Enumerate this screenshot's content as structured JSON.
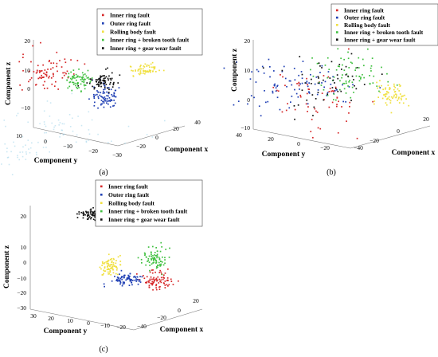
{
  "figure": {
    "panel_labels": [
      "(a)",
      "(b)",
      "(c)"
    ]
  },
  "chart_data": [
    {
      "type": "scatter",
      "panel": "(a)",
      "xlabel": "Component x",
      "ylabel": "Component y",
      "zlabel": "Component z",
      "xticks": [
        "40",
        "20",
        "0",
        "−20"
      ],
      "yticks": [
        "10",
        "0",
        "−10",
        "−20",
        "−30"
      ],
      "zticks": [
        "20",
        "10",
        "0",
        "−10"
      ],
      "legend_position": "top-center",
      "series": [
        {
          "name": "Inner ring fault",
          "color": "#d62728",
          "center": [
            5,
            5,
            5
          ]
        },
        {
          "name": "Outer ring fault",
          "color": "#1f3fb4",
          "center": [
            -20,
            -25,
            -5
          ]
        },
        {
          "name": "Rolling body fault",
          "color": "#f0e040",
          "center": [
            30,
            -25,
            8
          ]
        },
        {
          "name": "Inner ring + broken tooth fault",
          "color": "#40c040",
          "center": [
            15,
            -5,
            3
          ]
        },
        {
          "name": "Inner ring + gear wear fault",
          "color": "#111111",
          "center": [
            0,
            -20,
            2
          ]
        }
      ]
    },
    {
      "type": "scatter",
      "panel": "(b)",
      "xlabel": "Component x",
      "ylabel": "Component y",
      "zlabel": "Component z",
      "xticks": [
        "20",
        "0",
        "−20",
        "−40"
      ],
      "yticks": [
        "40",
        "20",
        "0",
        "−20"
      ],
      "zticks": [
        "20",
        "10",
        "0",
        "−10"
      ],
      "legend_position": "top-center",
      "series": [
        {
          "name": "Inner ring fault",
          "color": "#d62728",
          "center": [
            0,
            0,
            3
          ]
        },
        {
          "name": "Outer ring fault",
          "color": "#1f3fb4",
          "center": [
            -10,
            20,
            3
          ]
        },
        {
          "name": "Rolling body fault",
          "color": "#f0e040",
          "center": [
            -20,
            -25,
            0
          ]
        },
        {
          "name": "Inner ring + broken tooth fault",
          "color": "#40c040",
          "center": [
            -5,
            -10,
            8
          ]
        },
        {
          "name": "Inner ring + gear wear fault",
          "color": "#111111",
          "center": [
            5,
            -5,
            5
          ]
        }
      ]
    },
    {
      "type": "scatter",
      "panel": "(c)",
      "xlabel": "Component x",
      "ylabel": "Component y",
      "zlabel": "Component z",
      "xticks": [
        "20",
        "0",
        "−20",
        "−40"
      ],
      "yticks": [
        "30",
        "20",
        "10",
        "0",
        "−10",
        "−20"
      ],
      "zticks": [
        "20",
        "10",
        "0",
        "−10",
        "−20",
        "−30"
      ],
      "legend_position": "top-center",
      "series": [
        {
          "name": "Inner ring fault",
          "color": "#d62728",
          "center": [
            -20,
            -10,
            -10
          ]
        },
        {
          "name": "Outer ring fault",
          "color": "#1f3fb4",
          "center": [
            -5,
            5,
            -15
          ]
        },
        {
          "name": "Rolling body fault",
          "color": "#f0e040",
          "center": [
            10,
            10,
            -3
          ]
        },
        {
          "name": "Inner ring + broken tooth fault",
          "color": "#40c040",
          "center": [
            -15,
            -15,
            5
          ]
        },
        {
          "name": "Inner ring + gear wear fault",
          "color": "#111111",
          "center": [
            20,
            20,
            15
          ]
        }
      ]
    }
  ]
}
